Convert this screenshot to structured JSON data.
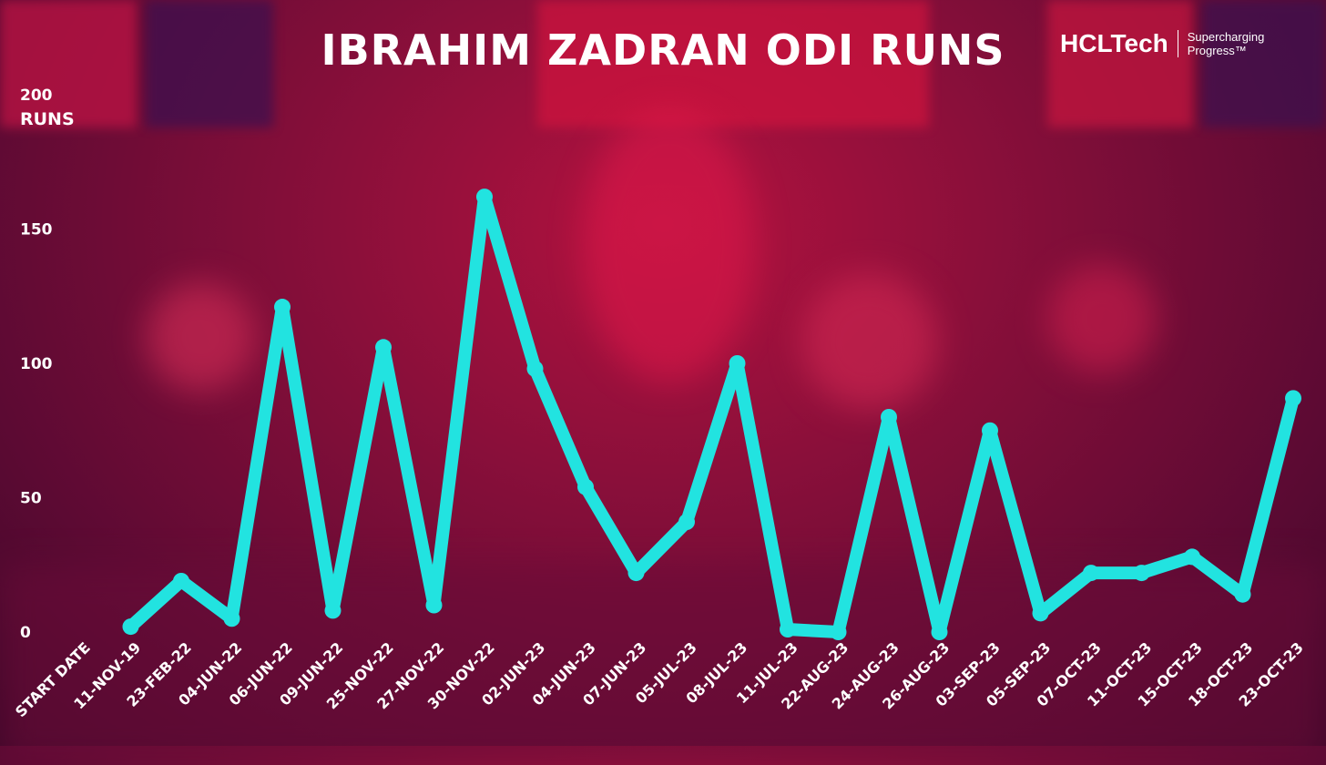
{
  "brand": {
    "name": "HCLTech",
    "tagline_line1": "Supercharging",
    "tagline_line2": "Progress™"
  },
  "chart_data": {
    "type": "line",
    "title": "IBRAHIM ZADRAN ODI RUNS",
    "ylabel": "RUNS",
    "ylim": [
      0,
      200
    ],
    "yticks": [
      0,
      50,
      100,
      150,
      200
    ],
    "categories": [
      "START DATE",
      "11-NOV-19",
      "23-FEB-22",
      "04-JUN-22",
      "06-JUN-22",
      "09-JUN-22",
      "25-NOV-22",
      "27-NOV-22",
      "30-NOV-22",
      "02-JUN-23",
      "04-JUN-23",
      "07-JUN-23",
      "05-JUL-23",
      "08-JUL-23",
      "11-JUL-23",
      "22-AUG-23",
      "24-AUG-23",
      "26-AUG-23",
      "03-SEP-23",
      "05-SEP-23",
      "07-OCT-23",
      "11-OCT-23",
      "15-OCT-23",
      "18-OCT-23",
      "23-OCT-23"
    ],
    "values": [
      null,
      2,
      19,
      5,
      121,
      8,
      106,
      10,
      162,
      98,
      54,
      22,
      41,
      100,
      1,
      0,
      80,
      0,
      75,
      7,
      22,
      22,
      28,
      14,
      87
    ],
    "grid": false,
    "legend": "none",
    "line_color": "#22e3e0"
  }
}
